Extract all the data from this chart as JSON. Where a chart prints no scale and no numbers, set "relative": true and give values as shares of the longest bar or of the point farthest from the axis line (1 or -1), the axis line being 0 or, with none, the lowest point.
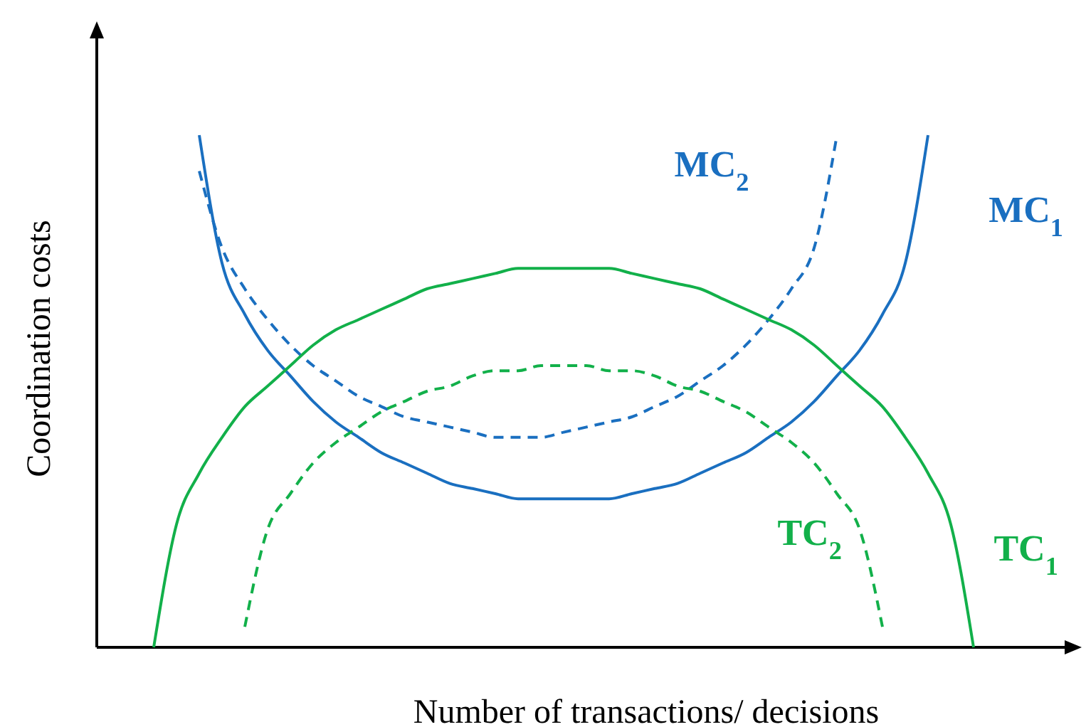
{
  "chart_data": {
    "type": "line",
    "relative": true,
    "xlabel": "Number of transactions/ decisions",
    "ylabel": "Coordination costs",
    "categories": [
      null,
      null,
      null,
      null,
      null,
      null,
      null,
      null,
      null,
      null,
      null,
      null,
      null,
      null,
      null,
      null,
      null,
      null,
      null,
      null,
      null,
      null,
      null,
      null,
      null,
      null,
      null,
      null,
      null,
      null,
      null,
      null,
      null,
      null,
      null,
      null,
      null,
      null,
      null,
      null,
      null,
      null,
      null
    ],
    "series": [
      {
        "name": "MC$_{2}$",
        "color": "#1a6fc0",
        "line_style": "dashed",
        "values": [
          null,
          null,
          null,
          null,
          0.93,
          0.78,
          0.7,
          0.64,
          0.59,
          0.55,
          0.52,
          0.49,
          0.47,
          0.45,
          0.44,
          0.43,
          0.42,
          0.41,
          0.41,
          0.41,
          0.42,
          0.43,
          0.44,
          0.45,
          0.47,
          0.49,
          0.52,
          0.55,
          0.59,
          0.64,
          0.7,
          0.78,
          1,
          null,
          null,
          null,
          null,
          null,
          null,
          null,
          null,
          null,
          null
        ]
      },
      {
        "name": "MC$_{1}$",
        "color": "#1a6fc0",
        "line_style": "solid",
        "values": [
          null,
          null,
          null,
          null,
          1,
          0.75,
          0.65,
          0.58,
          0.53,
          0.48,
          0.44,
          0.41,
          0.38,
          0.36,
          0.34,
          0.32,
          0.31,
          0.3,
          0.29,
          0.29,
          0.29,
          0.29,
          0.29,
          0.3,
          0.31,
          0.32,
          0.34,
          0.36,
          0.38,
          0.41,
          0.44,
          0.48,
          0.53,
          0.58,
          0.65,
          0.75,
          1,
          null,
          null,
          null,
          null,
          null,
          null
        ]
      },
      {
        "name": "TC$_{2}$",
        "color": "#12b04a",
        "line_style": "dashed",
        "values": [
          null,
          null,
          null,
          null,
          null,
          null,
          0.04,
          0.23,
          0.3,
          0.36,
          0.4,
          0.43,
          0.46,
          0.48,
          0.5,
          0.51,
          0.53,
          0.54,
          0.54,
          0.55,
          0.55,
          0.55,
          0.54,
          0.54,
          0.53,
          0.51,
          0.5,
          0.48,
          0.46,
          0.43,
          0.4,
          0.36,
          0.3,
          0.23,
          0.04,
          null,
          null,
          null,
          null,
          null,
          null,
          null,
          null
        ]
      },
      {
        "name": "TC$_{1}$",
        "color": "#12b04a",
        "line_style": "solid",
        "values": [
          null,
          null,
          0,
          0.24,
          0.34,
          0.41,
          0.47,
          0.51,
          0.55,
          0.59,
          0.62,
          0.64,
          0.66,
          0.68,
          0.7,
          0.71,
          0.72,
          0.73,
          0.74,
          0.74,
          0.74,
          0.74,
          0.74,
          0.73,
          0.72,
          0.71,
          0.7,
          0.68,
          0.66,
          0.64,
          0.62,
          0.59,
          0.55,
          0.51,
          0.47,
          0.41,
          0.34,
          0.24,
          0,
          null,
          null,
          null,
          null
        ]
      }
    ]
  }
}
